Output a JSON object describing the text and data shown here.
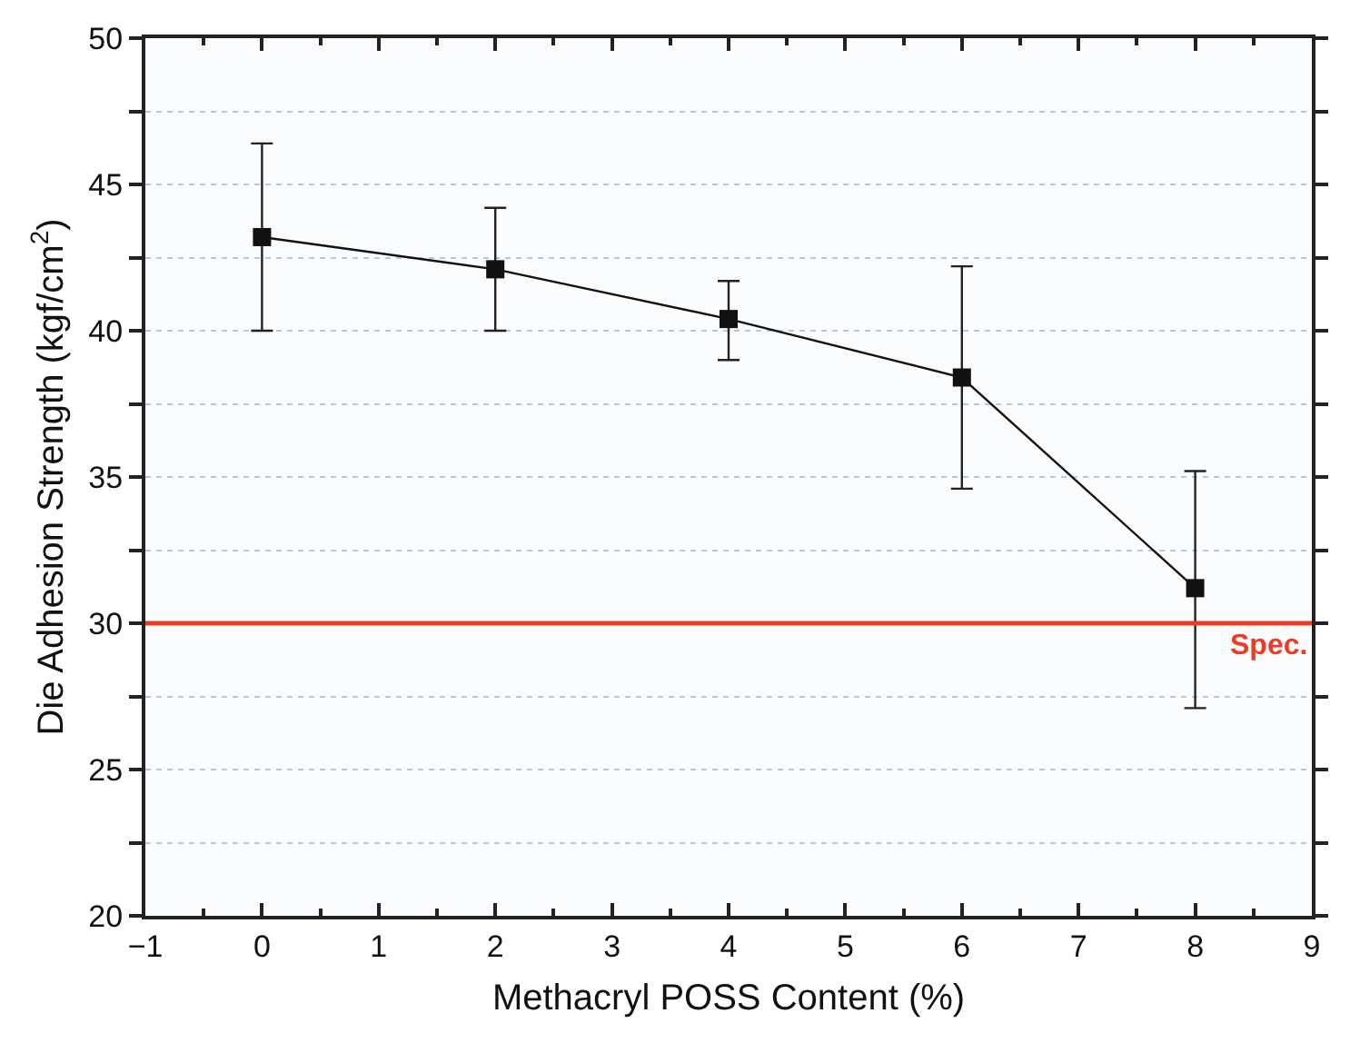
{
  "chart_data": {
    "type": "line",
    "xlabel": "Methacryl POSS Content (%)",
    "ylabel": "Die Adhesion Strength (kgf/cm$^{2}$)",
    "x": [
      0,
      2,
      4,
      6,
      8
    ],
    "series": [
      {
        "color": "#111111",
        "values": [
          43.2,
          42.1,
          40.4,
          38.4,
          31.2
        ],
        "errors": [
          [
            40.0,
            46.4
          ],
          [
            40.0,
            44.2
          ],
          [
            39.0,
            41.7
          ],
          [
            34.6,
            42.2
          ],
          [
            27.1,
            35.2
          ]
        ]
      }
    ],
    "xlim": [
      -1,
      9
    ],
    "xticks": [
      -1,
      0,
      1,
      2,
      3,
      4,
      5,
      6,
      7,
      8,
      9
    ],
    "ylim": [
      20,
      50
    ],
    "yticks": [
      20,
      {
        "value": 22.5,
        "label": null
      },
      25,
      {
        "value": 27.5,
        "label": null
      },
      30,
      {
        "value": 32.5,
        "label": null
      },
      35,
      {
        "value": 37.5,
        "label": null
      },
      40,
      {
        "value": 42.5,
        "label": null
      },
      45,
      {
        "value": 47.5,
        "label": null
      },
      50
    ],
    "ref_lines": [
      {
        "axis": "y",
        "value": 30,
        "label": "Spec.",
        "color": "#ee3b24"
      }
    ],
    "grid": "y",
    "marker": "square",
    "line_style": "solid"
  }
}
